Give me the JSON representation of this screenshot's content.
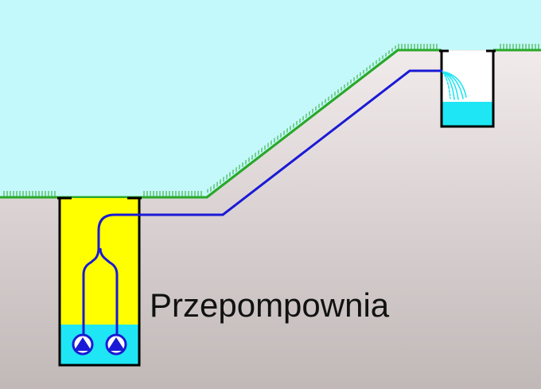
{
  "diagram": {
    "label": "Przepompownia"
  },
  "colors": {
    "sky": "#c4f9fb",
    "ground_top": "#f2ebeb",
    "ground_bottom": "#c1b8b8",
    "grass": "#2aa82a",
    "pipe": "#1a1ad6",
    "pit_fill": "#ffff00",
    "water": "#1ee6f4",
    "tank_fill": "#ffffff",
    "pump": "#1a1ad6",
    "outline": "#000000"
  },
  "elements": {
    "left_pit": "pumping-station-pit",
    "pumps": [
      "pump-left",
      "pump-right"
    ],
    "pipe": "pressure-pipe",
    "right_tank": "receiving-tank"
  }
}
